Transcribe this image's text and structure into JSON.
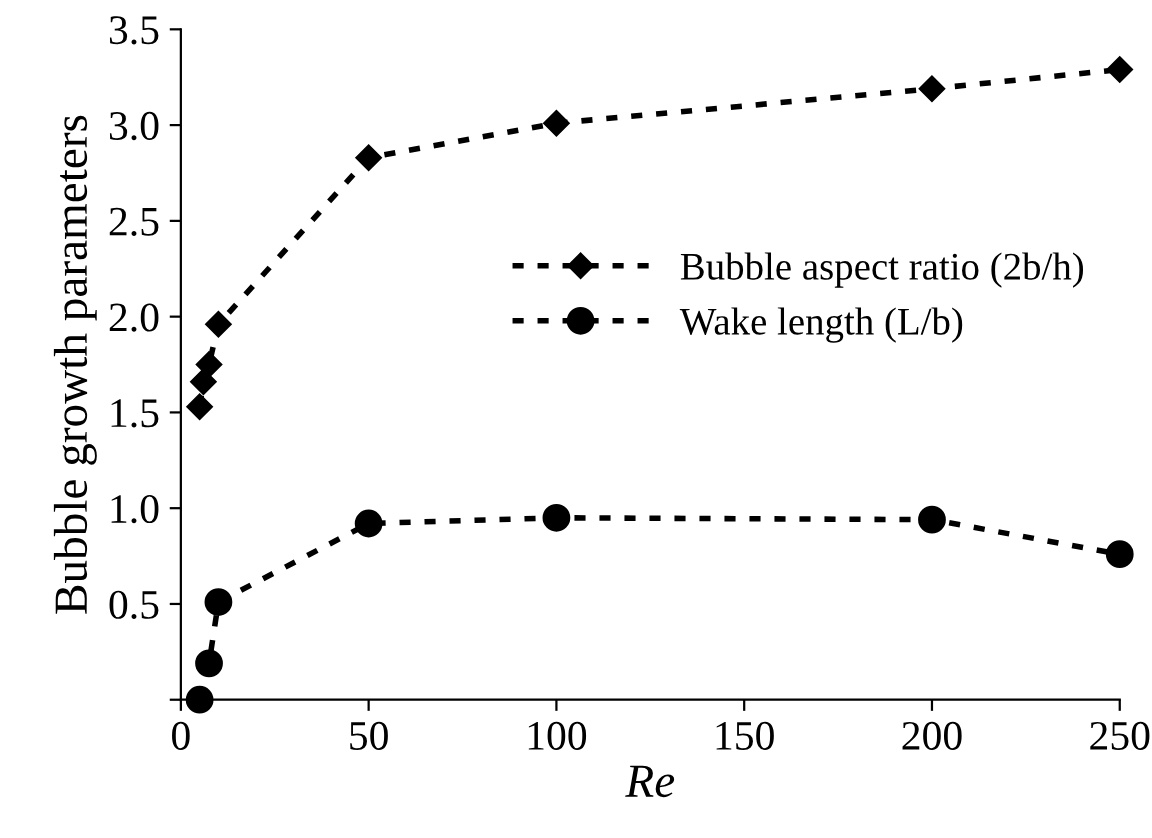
{
  "chart_data": {
    "type": "line",
    "xlabel": "Re",
    "ylabel": "Bubble growth parameters",
    "xlim": [
      0,
      250
    ],
    "xticks": [
      0,
      50,
      100,
      150,
      200,
      250
    ],
    "ylim": [
      0,
      3.5
    ],
    "yticks": [
      {
        "value": 0,
        "label": null
      },
      0.5,
      {
        "value": 1,
        "label": "1.0"
      },
      1.5,
      {
        "value": 2,
        "label": "2.0"
      },
      2.5,
      {
        "value": 3,
        "label": "3.0"
      },
      3.5
    ],
    "grid": false,
    "legend": "right",
    "line_style": "dotted",
    "series": [
      {
        "name": "Bubble aspect ratio (2b/h)",
        "color": "#000000",
        "marker": "diamond",
        "x": [
          5,
          6,
          7.5,
          10,
          50,
          100,
          200,
          250
        ],
        "values": [
          1.53,
          1.66,
          1.75,
          1.96,
          2.83,
          3.01,
          3.19,
          3.29
        ]
      },
      {
        "name": "Wake length (L/b)",
        "color": "#000000",
        "marker": "circle",
        "x": [
          5,
          7.5,
          10,
          50,
          100,
          200,
          250
        ],
        "values": [
          0,
          0.19,
          0.51,
          0.92,
          0.95,
          0.94,
          0.76
        ]
      }
    ]
  }
}
